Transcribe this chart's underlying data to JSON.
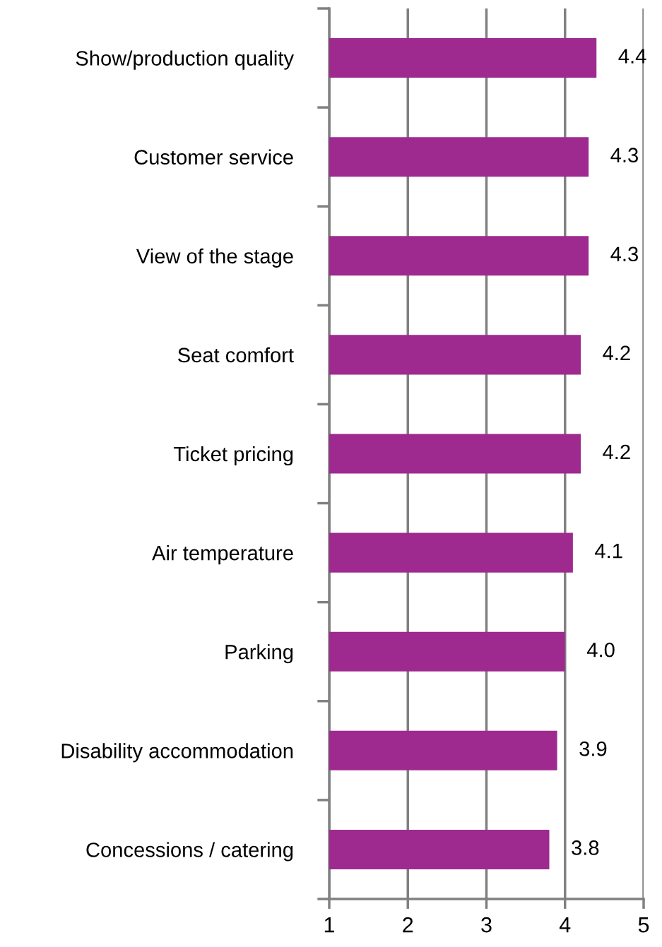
{
  "chart_data": {
    "type": "bar",
    "orientation": "horizontal",
    "categories": [
      "Show/production quality",
      "Customer service",
      "View of the stage",
      "Seat comfort",
      "Ticket pricing",
      "Air temperature",
      "Parking",
      "Disability accommodation",
      "Concessions / catering"
    ],
    "values": [
      4.4,
      4.3,
      4.3,
      4.2,
      4.2,
      4.1,
      4.0,
      3.9,
      3.8
    ],
    "value_labels": [
      "4.4",
      "4.3",
      "4.3",
      "4.2",
      "4.2",
      "4.1",
      "4.0",
      "3.9",
      "3.8"
    ],
    "color": "#9e2a8f",
    "xlim": [
      1,
      5
    ],
    "xticks": [
      1,
      2,
      3,
      4,
      5
    ],
    "grid": "x",
    "legend": false
  }
}
